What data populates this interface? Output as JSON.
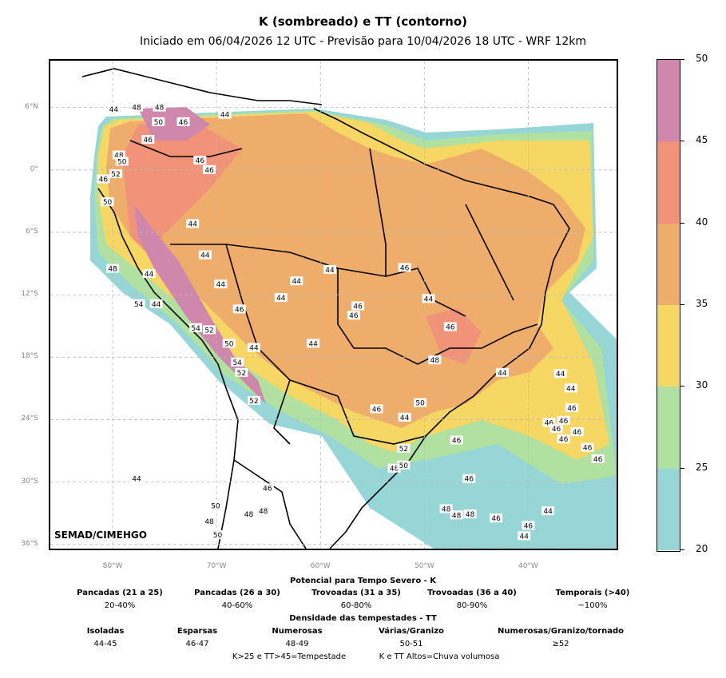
{
  "title": "K (sombreado) e TT (contorno)",
  "subtitle": "Iniciado em 06/04/2026 12 UTC - Previsão para 10/04/2026 18 UTC - WRF 12km",
  "credit": "SEMAD/CIMEHGO",
  "lat_labels": [
    "6°N",
    "0°",
    "6°S",
    "12°S",
    "18°S",
    "24°S",
    "30°S",
    "36°S"
  ],
  "lon_labels": [
    "80°W",
    "70°W",
    "60°W",
    "50°W",
    "40°W"
  ],
  "lat_values": [
    6,
    0,
    -6,
    -12,
    -18,
    -24,
    -30,
    -36
  ],
  "lon_values": [
    -80,
    -70,
    -60,
    -50,
    -40
  ],
  "map_extent": {
    "lon_min": -86,
    "lon_max": -31.5,
    "lat_min": -36.4,
    "lat_max": 10.5
  },
  "colorbar": {
    "ticks": [
      "20",
      "25",
      "30",
      "35",
      "40",
      "45",
      "50"
    ],
    "tick_values": [
      20,
      25,
      30,
      35,
      40,
      45,
      50
    ],
    "segments": [
      {
        "from": 20,
        "to": 25,
        "color": "#96d6d6"
      },
      {
        "from": 25,
        "to": 30,
        "color": "#b1e1a0"
      },
      {
        "from": 30,
        "to": 35,
        "color": "#f7d764"
      },
      {
        "from": 35,
        "to": 40,
        "color": "#efad6c"
      },
      {
        "from": 40,
        "to": 45,
        "color": "#f09378"
      },
      {
        "from": 45,
        "to": 50,
        "color": "#cf87ac"
      }
    ]
  },
  "tt_contour_labels": [
    {
      "v": "44",
      "lon": -79.9,
      "lat": 5.8
    },
    {
      "v": "48",
      "lon": -77.7,
      "lat": 6.0
    },
    {
      "v": "48",
      "lon": -75.5,
      "lat": 6.0
    },
    {
      "v": "50",
      "lon": -75.6,
      "lat": 4.6
    },
    {
      "v": "46",
      "lon": -73.2,
      "lat": 4.6
    },
    {
      "v": "44",
      "lon": -69.2,
      "lat": 5.3
    },
    {
      "v": "46",
      "lon": -76.6,
      "lat": 2.9
    },
    {
      "v": "48",
      "lon": -79.4,
      "lat": 1.4
    },
    {
      "v": "50",
      "lon": -79.1,
      "lat": 0.8
    },
    {
      "v": "46",
      "lon": -71.6,
      "lat": 0.9
    },
    {
      "v": "46",
      "lon": -70.7,
      "lat": 0.0
    },
    {
      "v": "52",
      "lon": -79.7,
      "lat": -0.4
    },
    {
      "v": "46",
      "lon": -80.9,
      "lat": -0.9
    },
    {
      "v": "50",
      "lon": -80.5,
      "lat": -3.1
    },
    {
      "v": "44",
      "lon": -72.3,
      "lat": -5.2
    },
    {
      "v": "44",
      "lon": -71.1,
      "lat": -8.2
    },
    {
      "v": "48",
      "lon": -80.0,
      "lat": -9.5
    },
    {
      "v": "44",
      "lon": -76.5,
      "lat": -10.0
    },
    {
      "v": "44",
      "lon": -69.6,
      "lat": -11.0
    },
    {
      "v": "44",
      "lon": -62.3,
      "lat": -10.7
    },
    {
      "v": "44",
      "lon": -59.1,
      "lat": -9.6
    },
    {
      "v": "46",
      "lon": -51.9,
      "lat": -9.4
    },
    {
      "v": "44",
      "lon": -63.8,
      "lat": -12.3
    },
    {
      "v": "44",
      "lon": -49.6,
      "lat": -12.4
    },
    {
      "v": "46",
      "lon": -67.8,
      "lat": -13.4
    },
    {
      "v": "46",
      "lon": -56.4,
      "lat": -13.1
    },
    {
      "v": "46",
      "lon": -56.8,
      "lat": -14.0
    },
    {
      "v": "54",
      "lon": -77.5,
      "lat": -12.9
    },
    {
      "v": "44",
      "lon": -75.8,
      "lat": -12.9
    },
    {
      "v": "54",
      "lon": -72.0,
      "lat": -15.2
    },
    {
      "v": "52",
      "lon": -70.7,
      "lat": -15.4
    },
    {
      "v": "50",
      "lon": -68.8,
      "lat": -16.7
    },
    {
      "v": "44",
      "lon": -66.4,
      "lat": -17.1
    },
    {
      "v": "44",
      "lon": -60.7,
      "lat": -16.7
    },
    {
      "v": "46",
      "lon": -47.5,
      "lat": -15.1
    },
    {
      "v": "54",
      "lon": -68.0,
      "lat": -18.5
    },
    {
      "v": "52",
      "lon": -67.6,
      "lat": -19.5
    },
    {
      "v": "48",
      "lon": -49.0,
      "lat": -18.3
    },
    {
      "v": "44",
      "lon": -42.5,
      "lat": -19.5
    },
    {
      "v": "44",
      "lon": -36.9,
      "lat": -19.6
    },
    {
      "v": "52",
      "lon": -66.4,
      "lat": -22.2
    },
    {
      "v": "50",
      "lon": -50.4,
      "lat": -22.4
    },
    {
      "v": "46",
      "lon": -54.6,
      "lat": -23.0
    },
    {
      "v": "44",
      "lon": -51.9,
      "lat": -23.8
    },
    {
      "v": "44",
      "lon": -35.9,
      "lat": -21.0
    },
    {
      "v": "46",
      "lon": -35.8,
      "lat": -22.9
    },
    {
      "v": "46",
      "lon": -36.6,
      "lat": -24.1
    },
    {
      "v": "46",
      "lon": -38.0,
      "lat": -24.3
    },
    {
      "v": "46",
      "lon": -37.3,
      "lat": -24.9
    },
    {
      "v": "46",
      "lon": -35.3,
      "lat": -25.2
    },
    {
      "v": "46",
      "lon": -36.6,
      "lat": -25.9
    },
    {
      "v": "46",
      "lon": -46.9,
      "lat": -26.0
    },
    {
      "v": "52",
      "lon": -52.0,
      "lat": -26.8
    },
    {
      "v": "46",
      "lon": -34.3,
      "lat": -26.7
    },
    {
      "v": "46",
      "lon": -33.3,
      "lat": -27.8
    },
    {
      "v": "48",
      "lon": -52.9,
      "lat": -28.7
    },
    {
      "v": "50",
      "lon": -52.0,
      "lat": -28.4
    },
    {
      "v": "44",
      "lon": -77.7,
      "lat": -29.7
    },
    {
      "v": "46",
      "lon": -45.7,
      "lat": -29.7
    },
    {
      "v": "46",
      "lon": -65.1,
      "lat": -30.6
    },
    {
      "v": "50",
      "lon": -70.1,
      "lat": -32.3
    },
    {
      "v": "48",
      "lon": -66.9,
      "lat": -33.1
    },
    {
      "v": "48",
      "lon": -65.5,
      "lat": -32.8
    },
    {
      "v": "48",
      "lon": -47.9,
      "lat": -32.6
    },
    {
      "v": "48",
      "lon": -45.6,
      "lat": -33.1
    },
    {
      "v": "48",
      "lon": -46.9,
      "lat": -33.2
    },
    {
      "v": "46",
      "lon": -43.1,
      "lat": -33.5
    },
    {
      "v": "44",
      "lon": -38.1,
      "lat": -32.8
    },
    {
      "v": "46",
      "lon": -40.0,
      "lat": -34.2
    },
    {
      "v": "44",
      "lon": -40.4,
      "lat": -35.2
    },
    {
      "v": "48",
      "lon": -70.7,
      "lat": -33.8
    },
    {
      "v": "50",
      "lon": -69.9,
      "lat": -35.1
    }
  ],
  "legend": {
    "k_heading": "Potencial para Tempo Severo - K",
    "k_items": [
      {
        "label": "Pancadas (21 a 25)",
        "range": "20-40%"
      },
      {
        "label": "Pancadas (26 a 30)",
        "range": "40-60%"
      },
      {
        "label": "Trovoadas (31 a 35)",
        "range": "60-80%"
      },
      {
        "label": "Trovoadas (36 a 40)",
        "range": "80-90%"
      },
      {
        "label": "Temporais (>40)",
        "range": "~100%"
      }
    ],
    "tt_heading": "Densidade das tempestades - TT",
    "tt_items": [
      {
        "label": "Isoladas",
        "range": "44-45"
      },
      {
        "label": "Esparsas",
        "range": "46-47"
      },
      {
        "label": "Numerosas",
        "range": "48-49"
      },
      {
        "label": "Várias/Granizo",
        "range": "50-51"
      },
      {
        "label": "Numerosas/Granizo/tornado",
        "range": "≥52"
      }
    ],
    "note_left": "K>25 e TT>45=Tempestade",
    "note_right": "K e TT Altos=Chuva volumosa"
  }
}
